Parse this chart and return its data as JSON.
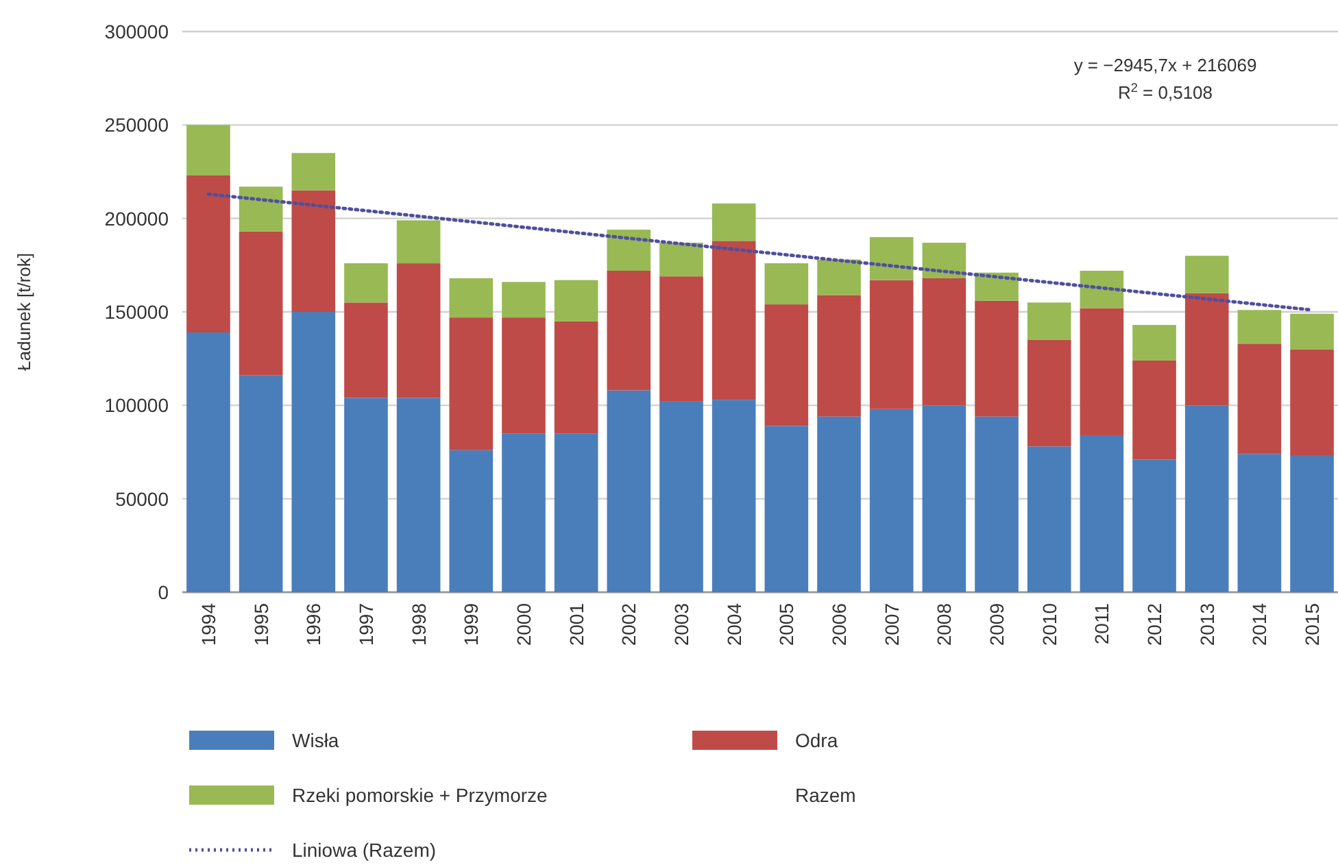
{
  "chart_data": {
    "type": "bar",
    "stacked": true,
    "ylabel": "Ładunek [t/rok]",
    "categories": [
      "1994",
      "1995",
      "1996",
      "1997",
      "1998",
      "1999",
      "2000",
      "2001",
      "2002",
      "2003",
      "2004",
      "2005",
      "2006",
      "2007",
      "2008",
      "2009",
      "2010",
      "2011",
      "2012",
      "2013",
      "2014",
      "2015"
    ],
    "series": [
      {
        "name": "Wisła",
        "color": "#4a7ebb",
        "values": [
          139000,
          116000,
          150000,
          104000,
          104000,
          76000,
          85000,
          85000,
          108000,
          102000,
          103000,
          89000,
          94000,
          98000,
          100000,
          94000,
          78000,
          84000,
          71000,
          100000,
          74000,
          73000
        ]
      },
      {
        "name": "Odra",
        "color": "#be4b48",
        "values": [
          84000,
          77000,
          65000,
          51000,
          72000,
          71000,
          62000,
          60000,
          64000,
          67000,
          85000,
          65000,
          65000,
          69000,
          68000,
          62000,
          57000,
          68000,
          53000,
          60000,
          59000,
          57000
        ]
      },
      {
        "name": "Rzeki pomorskie + Przymorze",
        "color": "#98b954",
        "values": [
          27000,
          24000,
          20000,
          21000,
          23000,
          21000,
          19000,
          22000,
          22000,
          18000,
          20000,
          22000,
          19000,
          23000,
          19000,
          15000,
          20000,
          20000,
          19000,
          20000,
          18000,
          19000
        ]
      },
      {
        "name": "Liniowa (Razem)",
        "type": "line",
        "color": "#4f4f9f",
        "line_style": "dotted",
        "values": [
          213000,
          null,
          null,
          null,
          null,
          null,
          null,
          null,
          null,
          null,
          null,
          null,
          null,
          null,
          null,
          null,
          null,
          null,
          null,
          null,
          null,
          151000
        ]
      }
    ],
    "ylim": [
      0,
      300000
    ],
    "yticks": [
      0,
      50000,
      100000,
      150000,
      200000,
      250000,
      300000
    ],
    "grid": "y",
    "legend": "bottom",
    "annotations": [
      "y = −2945,7x + 216069",
      "R$^{2}$ = 0,5108",
      "Razem"
    ]
  }
}
